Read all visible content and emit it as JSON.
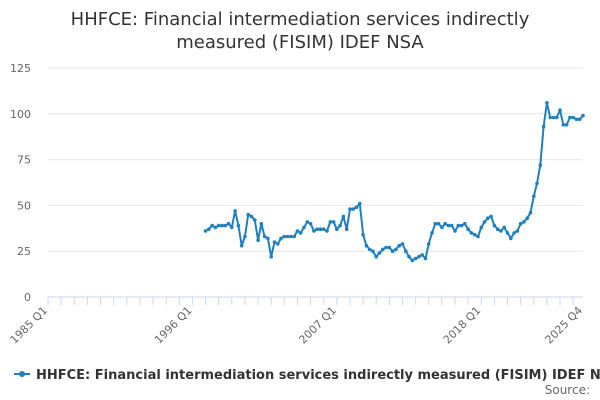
{
  "chart_data": {
    "type": "line",
    "title_lines": [
      "HHFCE: Financial intermediation services indirectly",
      "measured (FISIM) IDEF NSA"
    ],
    "title": "HHFCE: Financial intermediation services indirectly measured (FISIM) IDEF NSA",
    "xlabel": "",
    "ylabel": "",
    "ylim": [
      0,
      125
    ],
    "xlim": [
      1985.0,
      2025.75
    ],
    "y_ticks": [
      0,
      25,
      50,
      75,
      100,
      125
    ],
    "x_ticks": [
      {
        "pos": 1985.0,
        "label": "1985 Q1"
      },
      {
        "pos": 1996.0,
        "label": "1996 Q1"
      },
      {
        "pos": 2007.0,
        "label": "2007 Q1"
      },
      {
        "pos": 2018.0,
        "label": "2018 Q1"
      },
      {
        "pos": 2025.75,
        "label": "2025 Q4"
      }
    ],
    "legend_position": "bottom",
    "grid": true,
    "series": [
      {
        "name": "HHFCE: Financial intermediation services indirectly measured (FISIM) IDEF NSA",
        "color": "#1f7fc0",
        "start": 1997.0,
        "step": 0.25,
        "values": [
          36,
          37,
          39,
          38,
          39,
          39,
          39,
          40,
          38,
          47,
          39,
          28,
          33,
          45,
          44,
          42,
          31,
          40,
          33,
          32,
          22,
          30,
          29,
          32,
          33,
          33,
          33,
          33,
          36,
          35,
          38,
          41,
          40,
          36,
          37,
          37,
          37,
          36,
          41,
          41,
          37,
          39,
          44,
          37,
          48,
          48,
          49,
          51,
          34,
          28,
          26,
          25,
          22,
          24,
          26,
          27,
          27,
          25,
          26,
          28,
          29,
          25,
          22,
          20,
          21,
          22,
          23,
          21,
          29,
          35,
          40,
          40,
          38,
          40,
          39,
          39,
          36,
          39,
          39,
          40,
          37,
          35,
          34,
          33,
          38,
          41,
          43,
          44,
          39,
          37,
          36,
          38,
          35,
          32,
          35,
          36,
          40,
          41,
          43,
          46,
          55,
          62,
          72,
          93,
          106,
          98,
          98,
          98,
          102,
          94,
          94,
          98,
          98,
          97,
          97,
          99
        ]
      }
    ],
    "source_label": "Source:"
  }
}
